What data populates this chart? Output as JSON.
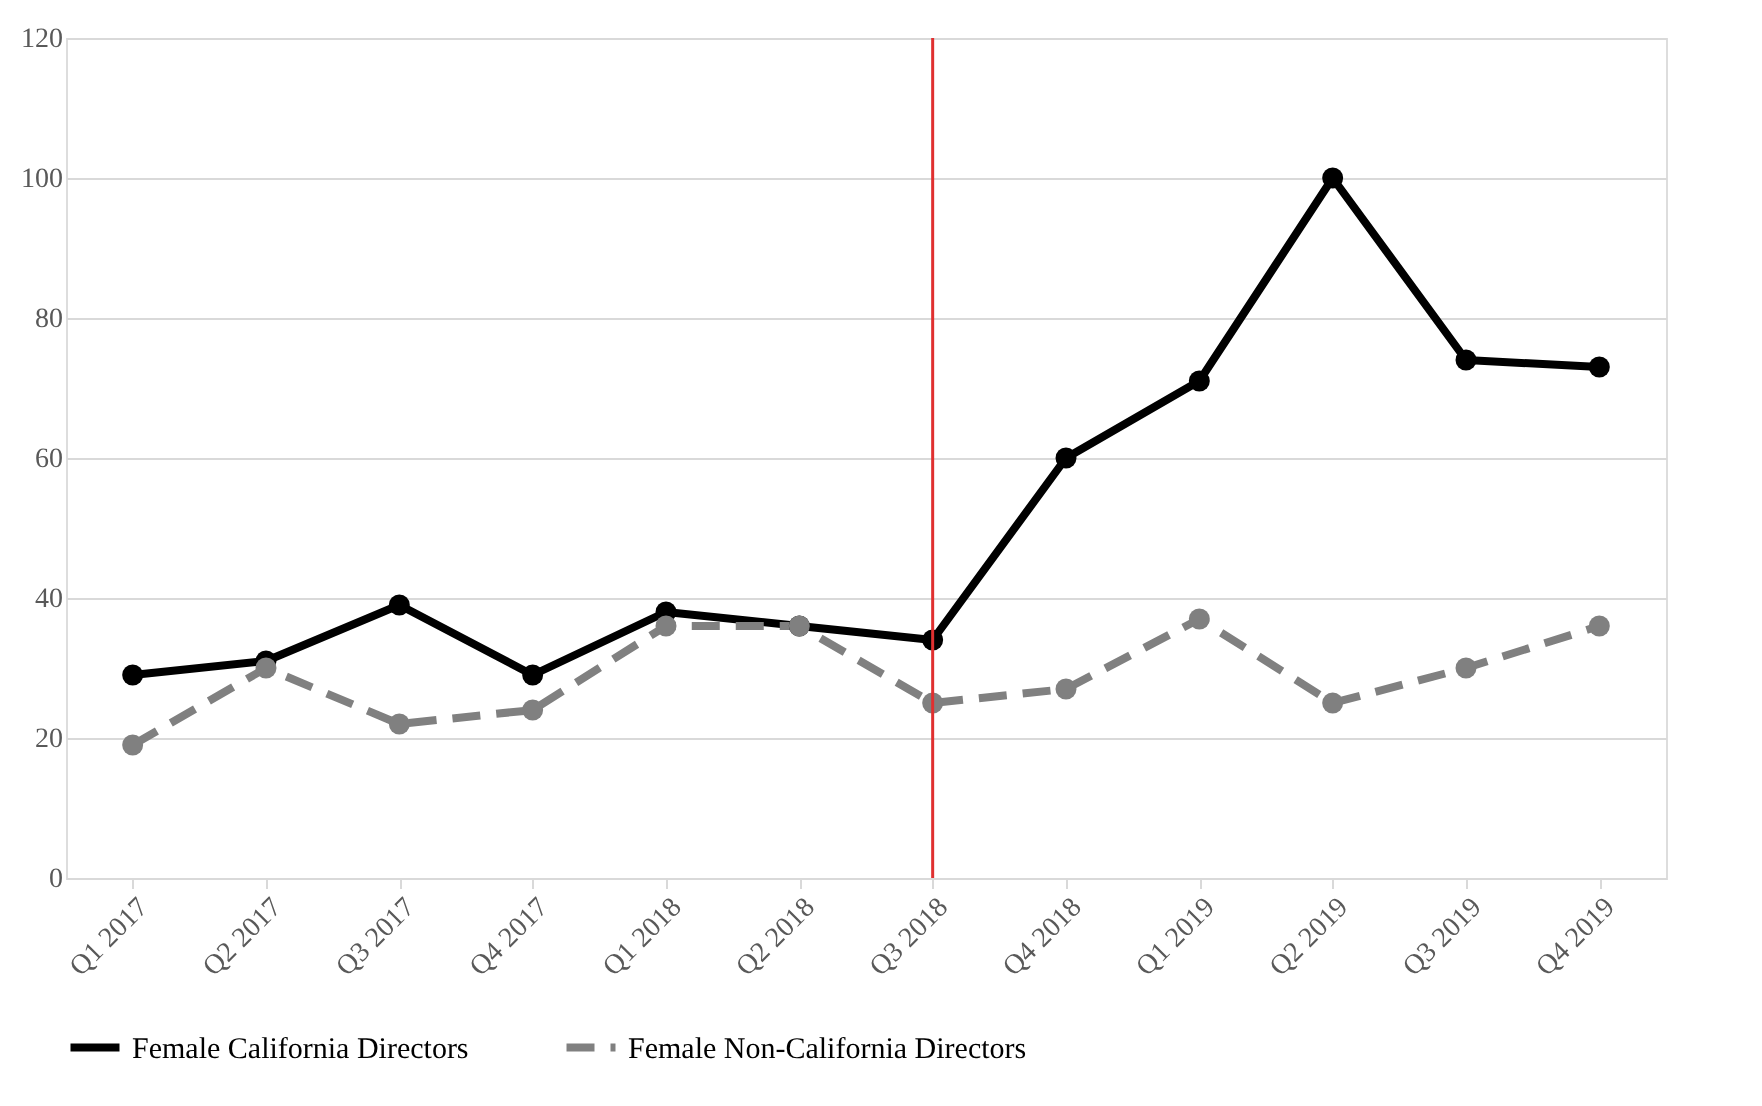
{
  "chart_data": {
    "type": "line",
    "categories": [
      "Q1 2017",
      "Q2 2017",
      "Q3 2017",
      "Q4 2017",
      "Q1 2018",
      "Q2 2018",
      "Q3 2018",
      "Q4 2018",
      "Q1 2019",
      "Q2 2019",
      "Q3 2019",
      "Q4 2019"
    ],
    "series": [
      {
        "name": "Female California Directors",
        "color": "#000000",
        "line_style": "solid",
        "values": [
          29,
          31,
          39,
          29,
          38,
          36,
          34,
          60,
          71,
          100,
          74,
          73
        ]
      },
      {
        "name": "Female Non-California Directors",
        "color": "#808080",
        "line_style": "dashed",
        "values": [
          19,
          30,
          22,
          24,
          36,
          36,
          25,
          27,
          37,
          25,
          30,
          36
        ]
      }
    ],
    "ylim": [
      0,
      120
    ],
    "yticks": [
      0,
      20,
      40,
      60,
      80,
      100,
      120
    ],
    "grid": "y",
    "legend": "bottom",
    "marker": "circle",
    "ref_lines": [
      {
        "axis": "x",
        "value": "Q3 2018",
        "color": "#e03030"
      }
    ]
  }
}
